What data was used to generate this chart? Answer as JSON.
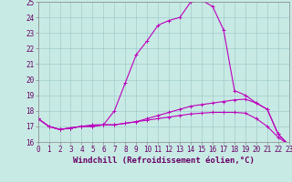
{
  "xlabel": "Windchill (Refroidissement éolien,°C)",
  "xlim": [
    0,
    23
  ],
  "ylim": [
    16,
    25
  ],
  "xtick_labels": [
    "0",
    "1",
    "2",
    "3",
    "4",
    "5",
    "6",
    "7",
    "8",
    "9",
    "10",
    "11",
    "12",
    "13",
    "14",
    "15",
    "16",
    "17",
    "18",
    "19",
    "20",
    "21",
    "22",
    "23"
  ],
  "ytick_labels": [
    "16",
    "17",
    "18",
    "19",
    "20",
    "21",
    "22",
    "23",
    "24",
    "25"
  ],
  "background_color": "#c8eae4",
  "grid_color": "#a0cccc",
  "line_color": "#bb00bb",
  "line1_y": [
    17.5,
    17.0,
    16.8,
    16.9,
    17.0,
    17.1,
    17.1,
    18.0,
    19.8,
    21.6,
    22.5,
    23.5,
    23.8,
    24.0,
    25.0,
    25.1,
    24.7,
    23.2,
    19.3,
    19.0,
    18.5,
    18.1,
    16.5,
    15.8
  ],
  "line2_y": [
    17.5,
    17.0,
    16.8,
    16.9,
    17.0,
    17.0,
    17.1,
    17.1,
    17.2,
    17.3,
    17.5,
    17.7,
    17.9,
    18.1,
    18.3,
    18.4,
    18.5,
    18.6,
    18.7,
    18.75,
    18.5,
    18.1,
    16.5,
    15.8
  ],
  "line3_y": [
    17.5,
    17.0,
    16.8,
    16.9,
    17.0,
    17.0,
    17.1,
    17.1,
    17.2,
    17.3,
    17.4,
    17.5,
    17.6,
    17.7,
    17.8,
    17.85,
    17.9,
    17.9,
    17.9,
    17.85,
    17.5,
    17.0,
    16.3,
    15.8
  ],
  "xlabel_fontsize": 6.5,
  "tick_fontsize": 5.5
}
